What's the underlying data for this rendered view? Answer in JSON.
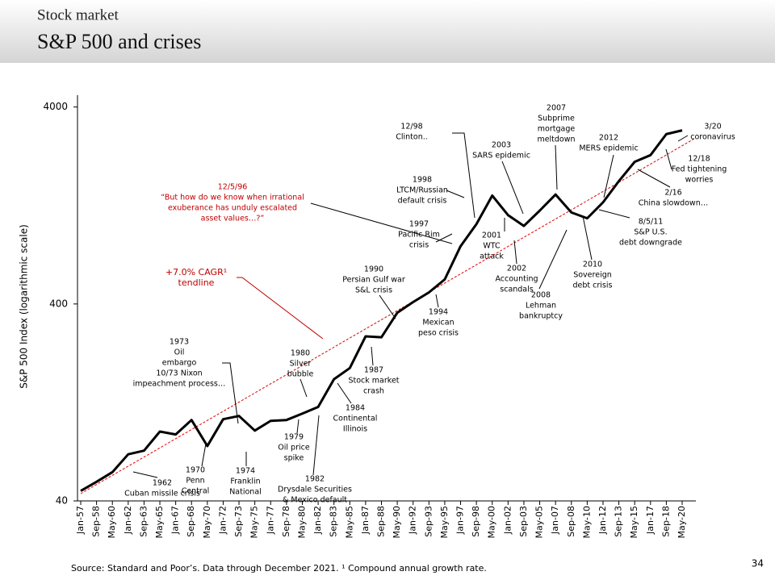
{
  "header": {
    "kicker": "Stock market",
    "title": "S&P 500 and crises"
  },
  "chart_data": {
    "type": "line",
    "log_scale": true,
    "ylabel": "S&P 500 Index (logarithmic scale)",
    "categories": [
      "Jan-57",
      "Sep-58",
      "May-60",
      "Jan-62",
      "Sep-63",
      "May-65",
      "Jan-67",
      "Sep-68",
      "May-70",
      "Jan-72",
      "Sep-73",
      "May-75",
      "Jan-77",
      "Sep-78",
      "May-80",
      "Jan-82",
      "Sep-83",
      "May-85",
      "Jan-87",
      "Sep-88",
      "May-90",
      "Jan-92",
      "Sep-93",
      "May-95",
      "Jan-97",
      "Sep-98",
      "May-00",
      "Jan-02",
      "Sep-03",
      "May-05",
      "Jan-07",
      "Sep-08",
      "May-10",
      "Jan-12",
      "Sep-13",
      "May-15",
      "Jan-17",
      "Sep-18",
      "May-20"
    ],
    "series": [
      {
        "name": "S&P 500",
        "color": "#000000",
        "values": [
          45,
          50,
          56,
          69,
          72,
          90,
          87,
          103,
          76,
          104,
          108,
          91,
          102,
          103,
          111,
          120,
          166,
          189,
          274,
          271,
          361,
          409,
          458,
          533,
          786,
          1017,
          1420,
          1130,
          996,
          1191,
          1438,
          1166,
          1089,
          1312,
          1682,
          2107,
          2279,
          2914,
          3044
        ]
      }
    ],
    "ylim": [
      40,
      5000
    ],
    "yticks": [
      40,
      400,
      4000
    ],
    "annotations": [
      {
        "text": [
          "1962",
          "Cuban missile crisis"
        ],
        "color": "#000000"
      },
      {
        "text": [
          "1970",
          "Penn",
          "Central"
        ],
        "color": "#000000"
      },
      {
        "text": [
          "1974",
          "Franklin",
          "National"
        ],
        "color": "#000000"
      },
      {
        "text": [
          "1973",
          "Oil",
          "embargo",
          "10/73 Nixon",
          "impeachment process…"
        ],
        "color": "#000000"
      },
      {
        "text": [
          "1980",
          "Silver",
          "bubble"
        ],
        "color": "#000000"
      },
      {
        "text": [
          "1979",
          "Oil price",
          "spike"
        ],
        "color": "#000000"
      },
      {
        "text": [
          "1982",
          "Drysdale Securities",
          "& Mexico default"
        ],
        "color": "#000000"
      },
      {
        "text": [
          "1984",
          "Continental",
          "Illinois"
        ],
        "color": "#000000"
      },
      {
        "text": [
          "1987",
          "Stock market",
          "crash"
        ],
        "color": "#000000"
      },
      {
        "text": [
          "1990",
          "Persian Gulf war",
          "S&L crisis"
        ],
        "color": "#000000"
      },
      {
        "text": [
          "1994",
          "Mexican",
          "peso crisis"
        ],
        "color": "#000000"
      },
      {
        "text": [
          "1997",
          "Pacific Rim",
          "crisis"
        ],
        "color": "#000000"
      },
      {
        "text": [
          "1998",
          "LTCM/Russian",
          "default crisis"
        ],
        "color": "#000000"
      },
      {
        "text": [
          "12/98",
          "Clinton.."
        ],
        "color": "#000000"
      },
      {
        "text": [
          "12/5/96",
          "“But how do we know when irrational",
          "exuberance has unduly escalated",
          "asset values…?”"
        ],
        "color": "#c00000"
      },
      {
        "text": [
          "+7.0% CAGR¹",
          "tendline"
        ],
        "color": "#c00000"
      },
      {
        "text": [
          "2001",
          "WTC",
          "attack"
        ],
        "color": "#000000"
      },
      {
        "text": [
          "2002",
          "Accounting",
          "scandals"
        ],
        "color": "#000000"
      },
      {
        "text": [
          "2003",
          "SARS epidemic"
        ],
        "color": "#000000"
      },
      {
        "text": [
          "2007",
          "Subprime",
          "mortgage",
          "meltdown"
        ],
        "color": "#000000"
      },
      {
        "text": [
          "2008",
          "Lehman",
          "bankruptcy"
        ],
        "color": "#000000"
      },
      {
        "text": [
          "2010",
          "Sovereign",
          "debt crisis"
        ],
        "color": "#000000"
      },
      {
        "text": [
          "2012",
          "MERS epidemic"
        ],
        "color": "#000000"
      },
      {
        "text": [
          "8/5/11",
          "S&P U.S.",
          "debt downgrade"
        ],
        "color": "#000000"
      },
      {
        "text": [
          "2/16",
          "China slowdown…"
        ],
        "color": "#000000"
      },
      {
        "text": [
          "12/18",
          "Fed tightening",
          "worries"
        ],
        "color": "#000000"
      },
      {
        "text": [
          "3/20",
          "coronavirus"
        ],
        "color": "#000000"
      }
    ]
  },
  "footer": {
    "source": "Source: Standard and Poor’s. Data through December 2021. ¹ Compound annual growth rate.",
    "page": "34"
  }
}
